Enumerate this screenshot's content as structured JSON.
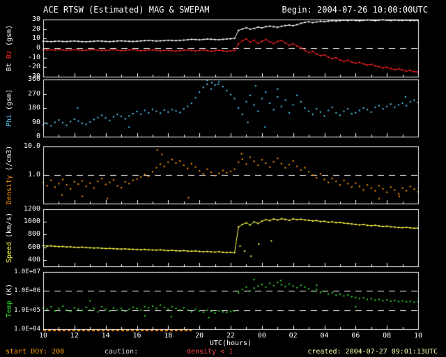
{
  "title": "ACE RTSW (Estimated) MAG & SWEPAM",
  "begin_label": "Begin: 2004-07-26 10:00:00UTC",
  "footer": {
    "start_doy": "start DOY: 208",
    "caution_label": "caution:",
    "caution_value": "density < 1",
    "xlabel": "UTC(hours)",
    "created": "created: 2004-07-27 09:01:13UTC"
  },
  "colors": {
    "background": "#000000",
    "frame": "#ffffff",
    "dashed_line": "#ffffff",
    "bt": "#ffffff",
    "bz": "#ff2222",
    "phi": "#55ccff",
    "density": "#ff9900",
    "speed": "#ffff44",
    "temp": "#33dd33",
    "caution_marks": "#ff8800",
    "doy_text": "#ff9900",
    "caution_label_text": "#cccccc",
    "caution_value_text": "#ff4444",
    "created_text": "#ffffaa",
    "tick_text": "#ffffff"
  },
  "x_axis": {
    "span_hours": 24,
    "major_tick_hours": 2,
    "minor_tick_hours": 1,
    "tick_labels": [
      "10",
      "12",
      "14",
      "16",
      "18",
      "20",
      "22",
      "00",
      "02",
      "04",
      "06",
      "08",
      "10"
    ]
  },
  "caution_marks": {
    "color": "#ff8800",
    "segments_hours": [
      [
        0,
        9.5
      ]
    ]
  },
  "chart_data": [
    {
      "name": "mag-bt-bz",
      "type": "scatter",
      "scale": "linear",
      "ylim": [
        -30,
        30
      ],
      "ytick_values": [
        30,
        20,
        10,
        0,
        -10,
        -20,
        -30
      ],
      "ytick_labels": [
        "30",
        "20",
        "10",
        "0",
        "-10",
        "-20",
        "-30"
      ],
      "dashed_values": [
        0
      ],
      "ylabel_parts": [
        {
          "text": "Bt ",
          "color": "#ffffff"
        },
        {
          "text": "Bz ",
          "color": "#ff2222"
        },
        {
          "text": "(gsm)",
          "color": "#ffffff"
        }
      ],
      "series": [
        {
          "name": "Bt",
          "color": "#ffffff",
          "connect": true,
          "x_start": 0,
          "x_step": 0.25,
          "values": [
            7.2,
            7.0,
            6.8,
            7.1,
            7.3,
            7.0,
            6.9,
            7.2,
            7.4,
            7.1,
            6.8,
            6.7,
            6.9,
            7.2,
            7.5,
            7.3,
            7.0,
            6.8,
            7.1,
            7.4,
            7.6,
            7.3,
            7.1,
            7.0,
            7.2,
            7.5,
            7.8,
            8.0,
            7.7,
            7.4,
            7.6,
            7.9,
            8.2,
            8.0,
            7.8,
            8.1,
            8.4,
            8.8,
            9.2,
            9.0,
            8.7,
            9.1,
            9.5,
            9.3,
            9.0,
            8.8,
            9.2,
            9.6,
            9.8,
            10.2,
            18.5,
            20.1,
            21.4,
            19.8,
            20.6,
            22.0,
            21.2,
            22.5,
            23.1,
            22.4,
            21.8,
            22.9,
            23.6,
            24.2,
            23.5,
            24.6,
            26.0,
            27.0,
            27.6,
            26.8,
            27.4,
            28.1,
            27.7,
            28.3,
            28.8,
            28.4,
            28.9,
            29.3,
            28.9,
            29.4,
            29.0,
            28.6,
            29.1,
            29.5,
            29.2,
            28.8,
            29.3,
            29.6,
            29.2,
            28.9,
            29.4,
            29.1,
            29.0,
            29.3,
            28.9,
            29.1,
            29.0
          ]
        },
        {
          "name": "Bz",
          "color": "#ff2222",
          "connect": true,
          "x_start": 0,
          "x_step": 0.25,
          "values": [
            -1.5,
            -2.0,
            -1.8,
            -2.2,
            -1.6,
            -1.9,
            -2.4,
            -2.0,
            -1.7,
            -2.1,
            -2.5,
            -2.2,
            -1.8,
            -1.5,
            -2.0,
            -2.6,
            -2.3,
            -1.9,
            -1.6,
            -2.2,
            -2.8,
            -2.4,
            -2.0,
            -1.7,
            -2.3,
            -2.9,
            -2.5,
            -2.1,
            -1.8,
            -2.4,
            -3.0,
            -2.6,
            -2.2,
            -2.8,
            -3.2,
            -2.7,
            -2.3,
            -1.9,
            -2.5,
            -3.1,
            -2.6,
            -2.0,
            -2.7,
            -3.3,
            -2.8,
            -2.2,
            -2.9,
            -3.4,
            -3.0,
            -2.5,
            4.5,
            7.8,
            9.5,
            6.2,
            8.4,
            5.0,
            7.2,
            9.0,
            6.5,
            4.8,
            6.9,
            8.1,
            5.5,
            3.0,
            4.6,
            2.1,
            0.5,
            -2.4,
            -4.8,
            -3.5,
            -6.2,
            -8.0,
            -7.1,
            -9.4,
            -11.0,
            -10.2,
            -12.5,
            -13.8,
            -12.9,
            -14.6,
            -15.8,
            -15.0,
            -16.5,
            -17.8,
            -17.0,
            -18.6,
            -19.5,
            -20.8,
            -20.0,
            -21.4,
            -22.6,
            -21.8,
            -23.0,
            -24.2,
            -23.5,
            -24.8,
            -25.0
          ]
        }
      ]
    },
    {
      "name": "mag-phi",
      "type": "scatter",
      "scale": "linear",
      "ylim": [
        0,
        360
      ],
      "ytick_values": [
        360,
        270,
        180,
        90,
        0
      ],
      "ytick_labels": [
        "360",
        "270",
        "180",
        "90",
        "0"
      ],
      "dashed_values": [],
      "ylabel_parts": [
        {
          "text": "Phi ",
          "color": "#55ccff"
        },
        {
          "text": "(gsm)",
          "color": "#ffffff"
        }
      ],
      "series": [
        {
          "name": "Phi",
          "color": "#55ccff",
          "connect": false,
          "x_start": 0,
          "x_step": 0.25,
          "values": [
            75,
            82,
            68,
            90,
            105,
            88,
            72,
            95,
            110,
            98,
            85,
            78,
            92,
            108,
            120,
            135,
            118,
            102,
            125,
            140,
            128,
            112,
            130,
            145,
            158,
            142,
            165,
            150,
            172,
            160,
            148,
            168,
            155,
            170,
            162,
            152,
            175,
            190,
            210,
            245,
            280,
            310,
            330,
            300,
            325,
            345,
            315,
            290,
            265,
            240,
            180,
            140,
            220,
            260,
            200,
            160,
            240,
            280,
            210,
            170,
            250,
            190,
            230,
            150,
            200,
            260,
            220,
            180,
            160,
            140,
            175,
            155,
            130,
            165,
            185,
            150,
            135,
            160,
            175,
            145,
            150,
            165,
            180,
            170,
            155,
            185,
            195,
            175,
            190,
            205,
            185,
            200,
            210,
            195,
            220,
            230,
            215
          ]
        }
      ],
      "extra_points": [
        {
          "color": "#55ccff",
          "points": [
            [
              2.2,
              180
            ],
            [
              5.5,
              60
            ],
            [
              10.5,
              355
            ],
            [
              10.8,
              340
            ],
            [
              11.2,
              330
            ],
            [
              13.1,
              90
            ],
            [
              13.6,
              320
            ],
            [
              14.2,
              60
            ],
            [
              15.0,
              300
            ],
            [
              23.2,
              250
            ]
          ]
        }
      ]
    },
    {
      "name": "swepam-density",
      "type": "scatter",
      "scale": "log",
      "ylim": [
        0.1,
        10
      ],
      "ytick_values": [
        10,
        1
      ],
      "ytick_labels": [
        "10.0",
        "1.0"
      ],
      "dashed_values": [
        1
      ],
      "ylabel_parts": [
        {
          "text": "Density ",
          "color": "#ff9900"
        },
        {
          "text": "(/cm3)",
          "color": "#ffffff"
        }
      ],
      "series": [
        {
          "name": "Density",
          "color": "#ff9900",
          "connect": false,
          "x_start": 0,
          "x_step": 0.25,
          "values": [
            0.55,
            0.42,
            0.65,
            0.38,
            0.5,
            0.7,
            0.45,
            0.33,
            0.58,
            0.48,
            0.62,
            0.4,
            0.52,
            0.35,
            0.6,
            0.75,
            0.47,
            0.55,
            0.68,
            0.42,
            0.36,
            0.58,
            0.5,
            0.65,
            0.72,
            0.85,
            1.05,
            0.9,
            1.3,
            1.8,
            2.4,
            2.0,
            2.8,
            3.5,
            2.6,
            3.1,
            2.2,
            1.7,
            2.5,
            1.9,
            1.4,
            1.1,
            1.6,
            1.25,
            0.95,
            1.15,
            1.45,
            1.2,
            1.35,
            1.6,
            2.8,
            3.6,
            2.4,
            4.2,
            3.0,
            2.2,
            3.4,
            2.6,
            1.9,
            2.9,
            3.8,
            2.5,
            1.8,
            2.3,
            3.1,
            2.0,
            1.5,
            1.8,
            1.3,
            1.0,
            0.8,
            1.1,
            0.7,
            0.55,
            0.75,
            0.6,
            0.45,
            0.65,
            0.5,
            0.38,
            0.52,
            0.4,
            0.3,
            0.45,
            0.35,
            0.28,
            0.42,
            0.33,
            0.25,
            0.38,
            0.3,
            0.22,
            0.35,
            0.28,
            0.4,
            0.32,
            0.26
          ]
        }
      ],
      "extra_points": [
        {
          "color": "#ff9900",
          "points": [
            [
              1.2,
              0.2
            ],
            [
              2.5,
              0.18
            ],
            [
              4.1,
              0.15
            ],
            [
              7.3,
              7.5
            ],
            [
              7.6,
              5.2
            ],
            [
              9.3,
              0.16
            ],
            [
              12.7,
              5.5
            ],
            [
              21.5,
              0.15
            ],
            [
              22.8,
              0.18
            ]
          ]
        }
      ]
    },
    {
      "name": "swepam-speed",
      "type": "scatter",
      "scale": "linear",
      "ylim": [
        300,
        1200
      ],
      "ytick_values": [
        1200,
        1000,
        800,
        600,
        400
      ],
      "ytick_labels": [
        "1200",
        "1000",
        "800",
        "600",
        "400"
      ],
      "dashed_values": [],
      "ylabel_parts": [
        {
          "text": "Speed ",
          "color": "#ffff44"
        },
        {
          "text": "(km/s)",
          "color": "#ffffff"
        }
      ],
      "series": [
        {
          "name": "Speed",
          "color": "#ffff44",
          "connect": true,
          "x_start": 0,
          "x_step": 0.25,
          "values": [
            625,
            618,
            622,
            615,
            610,
            612,
            605,
            608,
            600,
            598,
            602,
            595,
            592,
            588,
            590,
            585,
            580,
            583,
            578,
            575,
            572,
            576,
            570,
            568,
            565,
            562,
            566,
            560,
            558,
            555,
            560,
            552,
            548,
            553,
            545,
            542,
            548,
            540,
            538,
            542,
            535,
            530,
            534,
            528,
            525,
            530,
            522,
            518,
            520,
            515,
            920,
            960,
            985,
            950,
            1000,
            975,
            1010,
            1035,
            1020,
            1045,
            1030,
            1050,
            1040,
            1025,
            1048,
            1035,
            1042,
            1030,
            1025,
            1015,
            1020,
            1005,
            1010,
            995,
            1000,
            988,
            992,
            980,
            975,
            968,
            960,
            952,
            958,
            945,
            940,
            946,
            935,
            928,
            932,
            922,
            918,
            912,
            908,
            915,
            905,
            900,
            902
          ]
        }
      ],
      "extra_points": [
        {
          "color": "#ffff44",
          "points": [
            [
              12.6,
              620
            ],
            [
              12.9,
              540
            ],
            [
              13.3,
              460
            ],
            [
              13.8,
              650
            ],
            [
              14.6,
              700
            ]
          ]
        }
      ]
    },
    {
      "name": "swepam-temp",
      "type": "scatter",
      "scale": "log",
      "ylim": [
        10000,
        10000000
      ],
      "ytick_values": [
        10000000,
        1000000,
        100000,
        10000
      ],
      "ytick_labels": [
        "1.0E+07",
        "1.0E+06",
        "1.0E+05",
        "1.0E+04"
      ],
      "ytick_small": true,
      "dashed_values": [
        1000000,
        100000
      ],
      "ylabel_parts": [
        {
          "text": "Temp ",
          "color": "#33dd33"
        },
        {
          "text": "(K)",
          "color": "#ffffff"
        }
      ],
      "series": [
        {
          "name": "Temp",
          "color": "#33dd33",
          "connect": false,
          "x_start": 0,
          "x_step": 0.25,
          "values": [
            130000,
            110000,
            150000,
            90000,
            120000,
            160000,
            100000,
            85000,
            130000,
            110000,
            95000,
            140000,
            100000,
            120000,
            80000,
            150000,
            110000,
            90000,
            130000,
            100000,
            120000,
            85000,
            110000,
            140000,
            120000,
            100000,
            150000,
            130000,
            160000,
            120000,
            180000,
            140000,
            110000,
            150000,
            120000,
            100000,
            130000,
            100000,
            80000,
            110000,
            90000,
            75000,
            100000,
            85000,
            70000,
            90000,
            80000,
            75000,
            85000,
            90000,
            800000,
            1200000,
            1600000,
            1000000,
            1400000,
            1800000,
            2200000,
            1600000,
            2500000,
            1900000,
            2800000,
            2100000,
            1700000,
            2300000,
            1800000,
            1500000,
            2000000,
            1600000,
            1300000,
            1000000,
            1200000,
            850000,
            950000,
            700000,
            800000,
            600000,
            680000,
            550000,
            620000,
            500000,
            450000,
            400000,
            440000,
            360000,
            390000,
            330000,
            360000,
            310000,
            340000,
            290000,
            320000,
            280000,
            300000,
            270000,
            290000,
            260000,
            280000
          ]
        }
      ],
      "extra_points": [
        {
          "color": "#33dd33",
          "points": [
            [
              3.0,
              300000
            ],
            [
              6.5,
              50000
            ],
            [
              8.2,
              45000
            ],
            [
              10.6,
              40000
            ],
            [
              13.5,
              4000000
            ],
            [
              15.2,
              3500000
            ],
            [
              17.5,
              2000000
            ],
            [
              20.0,
              150000
            ]
          ]
        }
      ]
    }
  ]
}
